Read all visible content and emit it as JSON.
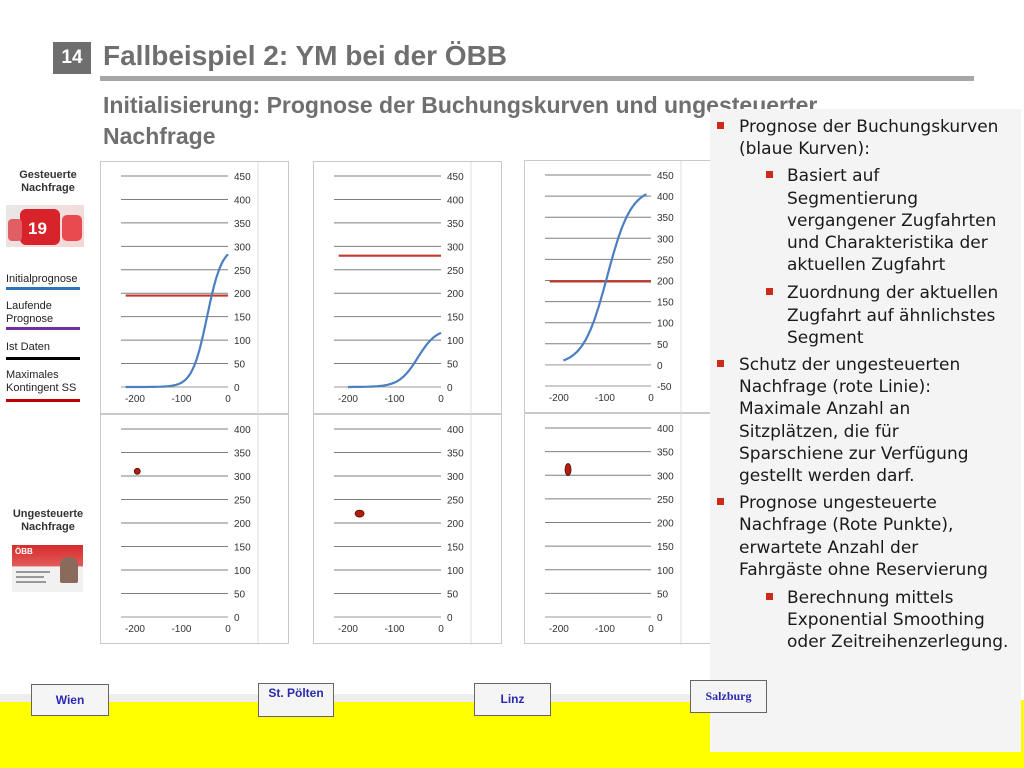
{
  "slide": {
    "number": "14",
    "title": "Fallbeispiel 2: YM bei der ÖBB",
    "subtitle": "Initialisierung: Prognose der Buchungskurven und ungesteuerter Nachfrage"
  },
  "sidebar": {
    "controlled_heading": "Gesteuerte Nachfrage",
    "uncontrolled_heading": "Ungesteuerte Nachfrage",
    "sparschiene_ticket_text": "19",
    "card_text": "ÖBB",
    "legend": [
      {
        "label": "Initialprognose",
        "color": "#2e75b6"
      },
      {
        "label": "Laufende Prognose",
        "color": "#7030a0"
      },
      {
        "label": "Ist Daten",
        "color": "#000000"
      },
      {
        "label": "Maximales Kontingent SS",
        "color": "#c00000"
      }
    ]
  },
  "colors": {
    "curve": "#4a7fc1",
    "limit": "#c0392b",
    "point": "#b01e10",
    "bullet": "#cc2b1c",
    "station_text": "#2a2ab0"
  },
  "chart_data": [
    {
      "type": "line",
      "name": "Wien Buchungskurve",
      "x_ticks": [
        "-200",
        "-100",
        "0"
      ],
      "y_ticks": [
        "0",
        "50",
        "100",
        "150",
        "200",
        "250",
        "300",
        "350",
        "400",
        "450"
      ],
      "xlim": [
        -230,
        0
      ],
      "ylim": [
        0,
        450
      ],
      "curve": {
        "midpoint": -45,
        "max": 300,
        "steep": 16
      },
      "curve_x_range": [
        -220,
        0
      ],
      "limit": 195
    },
    {
      "type": "line",
      "name": "St. Pölten Buchungskurve",
      "x_ticks": [
        "-200",
        "-100",
        "0"
      ],
      "y_ticks": [
        "0",
        "50",
        "100",
        "150",
        "200",
        "250",
        "300",
        "350",
        "400",
        "450"
      ],
      "xlim": [
        -230,
        0
      ],
      "ylim": [
        0,
        450
      ],
      "curve": {
        "midpoint": -50,
        "max": 125,
        "steep": 20
      },
      "curve_x_range": [
        -200,
        0
      ],
      "limit": 280
    },
    {
      "type": "line",
      "name": "Linz Buchungskurve",
      "x_ticks": [
        "-200",
        "-100",
        "0"
      ],
      "y_ticks": [
        "-50",
        "0",
        "50",
        "100",
        "150",
        "200",
        "250",
        "300",
        "350",
        "400",
        "450"
      ],
      "xlim": [
        -230,
        0
      ],
      "ylim": [
        -50,
        450
      ],
      "curve": {
        "midpoint": -95,
        "max": 420,
        "steep": 26
      },
      "curve_x_range": [
        -190,
        -10
      ],
      "limit": 198
    },
    {
      "type": "scatter",
      "name": "Wien ungesteuerte Nachfrage",
      "x_ticks": [
        "-200",
        "-100",
        "0"
      ],
      "y_ticks": [
        "0",
        "50",
        "100",
        "150",
        "200",
        "250",
        "300",
        "350",
        "400"
      ],
      "xlim": [
        -230,
        0
      ],
      "ylim": [
        0,
        400
      ],
      "points": [
        {
          "x": -195,
          "y": 310,
          "rx": 3,
          "ry": 3
        }
      ]
    },
    {
      "type": "scatter",
      "name": "St. Pölten ungesteuerte Nachfrage",
      "x_ticks": [
        "-200",
        "-100",
        "0"
      ],
      "y_ticks": [
        "0",
        "50",
        "100",
        "150",
        "200",
        "250",
        "300",
        "350",
        "400"
      ],
      "xlim": [
        -230,
        0
      ],
      "ylim": [
        0,
        400
      ],
      "points": [
        {
          "x": -175,
          "y": 220,
          "rx": 4.5,
          "ry": 3.5
        }
      ]
    },
    {
      "type": "scatter",
      "name": "Linz ungesteuerte Nachfrage",
      "x_ticks": [
        "-200",
        "-100",
        "0"
      ],
      "y_ticks": [
        "0",
        "50",
        "100",
        "150",
        "200",
        "250",
        "300",
        "350",
        "400"
      ],
      "xlim": [
        -230,
        0
      ],
      "ylim": [
        0,
        400
      ],
      "points": [
        {
          "x": -180,
          "y": 312,
          "rx": 3,
          "ry": 6
        }
      ]
    }
  ],
  "content": {
    "bullets": [
      {
        "level": 1,
        "text": "Prognose der Buchungskurven (blaue Kurven):"
      },
      {
        "level": 2,
        "text": "Basiert auf Segmentierung vergangener Zugfahrten und Charakteristika der aktuellen Zugfahrt"
      },
      {
        "level": 2,
        "text": "Zuordnung der aktuellen Zugfahrt auf ähnlichstes Segment"
      },
      {
        "level": 1,
        "text": "Schutz der ungesteuerten Nachfrage (rote Linie): Maximale Anzahl an Sitzplätzen, die für Sparschiene zur Verfügung gestellt werden darf."
      },
      {
        "level": 1,
        "text": "Prognose ungesteuerte Nachfrage (Rote Punkte), erwartete Anzahl der Fahrgäste ohne Reservierung"
      },
      {
        "level": 2,
        "text": "Berechnung mittels Exponential Smoothing oder Zeitreihenzerlegung."
      }
    ]
  },
  "stations": [
    {
      "label": "Wien"
    },
    {
      "label": "St. Pölten"
    },
    {
      "label": "Linz"
    },
    {
      "label": "Salzburg"
    }
  ]
}
